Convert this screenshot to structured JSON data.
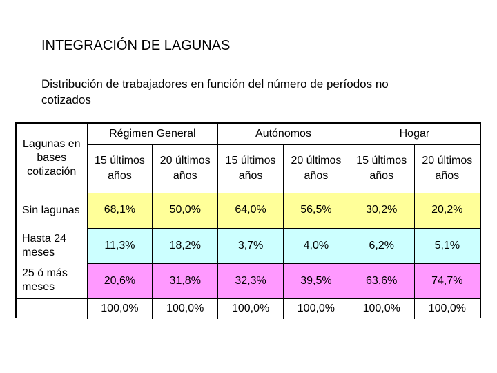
{
  "title": "INTEGRACIÓN DE LAGUNAS",
  "subtitle": "Distribución de trabajadores en función del número de períodos no cotizados",
  "table": {
    "corner_label": "Lagunas en bases cotización",
    "groups": [
      "Régimen General",
      "Autónomos",
      "Hogar"
    ],
    "subheaders": [
      "15 últimos años",
      "20 últimos años",
      "15 últimos años",
      "20 últimos años",
      "15 últimos años",
      "20 últimos años"
    ],
    "rows": [
      {
        "label": "Sin lagunas",
        "values": [
          "68,1%",
          "50,0%",
          "64,0%",
          "56,5%",
          "30,2%",
          "20,2%"
        ]
      },
      {
        "label": "Hasta 24 meses",
        "values": [
          "11,3%",
          "18,2%",
          "3,7%",
          "4,0%",
          "6,2%",
          "5,1%"
        ]
      },
      {
        "label": "25 ó más meses",
        "values": [
          "20,6%",
          "31,8%",
          "32,3%",
          "39,5%",
          "63,6%",
          "74,7%"
        ]
      },
      {
        "label": "",
        "values": [
          "100,0%",
          "100,0%",
          "100,0%",
          "100,0%",
          "100,0%",
          "100,0%"
        ]
      }
    ],
    "colors": {
      "sin_lagunas": "#ffff99",
      "hasta_24": "#ccffff",
      "mas_25": "#ff99ff"
    }
  }
}
